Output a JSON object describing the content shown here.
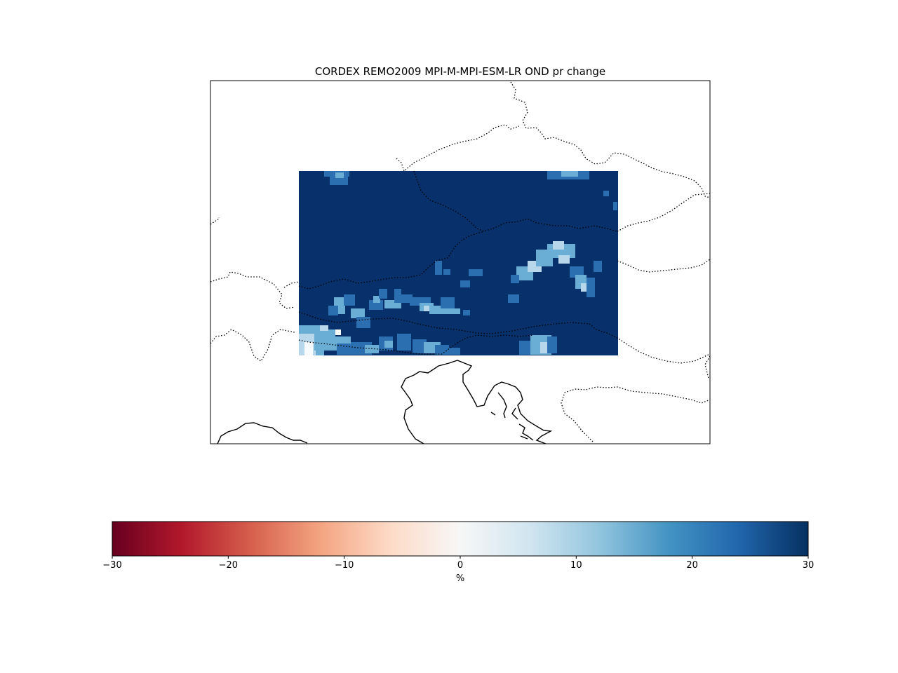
{
  "map": {
    "title": "CORDEX REMO2009 MPI-M-MPI-ESM-LR OND pr change",
    "field_description_colors": {
      "dominant": "#08306b",
      "medium": "#2c6fb1",
      "light": "#6aaed6",
      "pale": "#b9d7ea",
      "white": "#f7fbff"
    }
  },
  "colorbar": {
    "label": "%",
    "min": -30,
    "max": 30,
    "ticks": [
      {
        "value": -30,
        "label": "−30"
      },
      {
        "value": -20,
        "label": "−20"
      },
      {
        "value": -10,
        "label": "−10"
      },
      {
        "value": 0,
        "label": "0"
      },
      {
        "value": 10,
        "label": "10"
      },
      {
        "value": 20,
        "label": "20"
      },
      {
        "value": 30,
        "label": "30"
      }
    ],
    "colormap": "RdBu",
    "stops": [
      "#67001f",
      "#b2182b",
      "#d6604d",
      "#f4a582",
      "#fddbc7",
      "#f7f7f7",
      "#d1e5f0",
      "#92c5de",
      "#4393c3",
      "#2166ac",
      "#053061"
    ]
  }
}
